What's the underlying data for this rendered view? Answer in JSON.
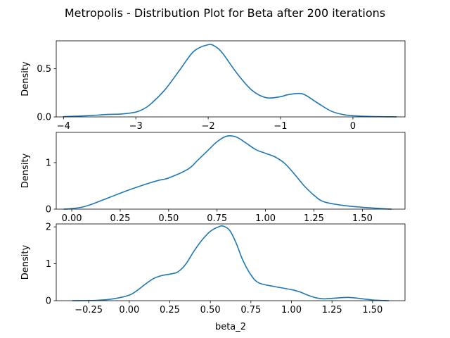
{
  "title": "Metropolis - Distribution Plot for Beta after 200 iterations",
  "chart_data": [
    {
      "type": "line",
      "xlabel": "",
      "ylabel": "Density",
      "xlim": [
        -4.1,
        0.72
      ],
      "ylim": [
        0,
        0.79
      ],
      "xticks": [
        -4,
        -3,
        -2,
        -1,
        0
      ],
      "xtick_labels": [
        "−4",
        "−3",
        "−2",
        "−1",
        "0"
      ],
      "yticks": [
        0,
        0.5
      ],
      "ytick_labels": [
        "0.0",
        "0.5"
      ],
      "color": "#1f77b4",
      "series": [
        {
          "x": [
            -4.0,
            -3.8,
            -3.6,
            -3.4,
            -3.2,
            -3.0,
            -2.9,
            -2.8,
            -2.6,
            -2.4,
            -2.2,
            -2.0,
            -1.9,
            -1.8,
            -1.6,
            -1.4,
            -1.2,
            -1.0,
            -0.9,
            -0.7,
            -0.5,
            -0.3,
            -0.1,
            0.2,
            0.6
          ],
          "y": [
            0.002,
            0.008,
            0.015,
            0.025,
            0.03,
            0.05,
            0.08,
            0.13,
            0.28,
            0.48,
            0.68,
            0.75,
            0.73,
            0.66,
            0.45,
            0.28,
            0.2,
            0.21,
            0.23,
            0.24,
            0.15,
            0.06,
            0.02,
            0.005,
            0.001
          ]
        }
      ]
    },
    {
      "type": "line",
      "xlabel": "",
      "ylabel": "Density",
      "xlim": [
        -0.08,
        1.72
      ],
      "ylim": [
        0,
        1.65
      ],
      "xticks": [
        0.0,
        0.25,
        0.5,
        0.75,
        1.0,
        1.25,
        1.5
      ],
      "xtick_labels": [
        "0.00",
        "0.25",
        "0.50",
        "0.75",
        "1.00",
        "1.25",
        "1.50"
      ],
      "yticks": [
        0,
        1
      ],
      "ytick_labels": [
        "0",
        "1"
      ],
      "color": "#1f77b4",
      "series": [
        {
          "x": [
            -0.04,
            0.0,
            0.05,
            0.1,
            0.15,
            0.2,
            0.3,
            0.4,
            0.45,
            0.5,
            0.6,
            0.65,
            0.7,
            0.75,
            0.8,
            0.85,
            0.9,
            0.95,
            1.0,
            1.05,
            1.1,
            1.15,
            1.2,
            1.25,
            1.3,
            1.4,
            1.5,
            1.6,
            1.65
          ],
          "y": [
            0.0,
            0.01,
            0.04,
            0.1,
            0.18,
            0.26,
            0.42,
            0.56,
            0.62,
            0.67,
            0.86,
            1.05,
            1.25,
            1.45,
            1.57,
            1.55,
            1.42,
            1.28,
            1.2,
            1.12,
            0.98,
            0.75,
            0.5,
            0.3,
            0.16,
            0.08,
            0.04,
            0.01,
            0.0
          ]
        }
      ]
    },
    {
      "type": "line",
      "xlabel": "beta_2",
      "ylabel": "Density",
      "xlim": [
        -0.45,
        1.7
      ],
      "ylim": [
        0,
        2.08
      ],
      "xticks": [
        -0.25,
        0.0,
        0.25,
        0.5,
        0.75,
        1.0,
        1.25,
        1.5
      ],
      "xtick_labels": [
        "−0.25",
        "0.00",
        "0.25",
        "0.50",
        "0.75",
        "1.00",
        "1.25",
        "1.50"
      ],
      "yticks": [
        0,
        1,
        2
      ],
      "ytick_labels": [
        "0",
        "1",
        "2"
      ],
      "color": "#1f77b4",
      "series": [
        {
          "x": [
            -0.35,
            -0.2,
            -0.1,
            0.0,
            0.05,
            0.1,
            0.15,
            0.2,
            0.25,
            0.3,
            0.35,
            0.4,
            0.45,
            0.5,
            0.55,
            0.58,
            0.62,
            0.66,
            0.7,
            0.75,
            0.8,
            0.9,
            1.0,
            1.05,
            1.1,
            1.15,
            1.2,
            1.3,
            1.35,
            1.4,
            1.5,
            1.6
          ],
          "y": [
            0.0,
            0.01,
            0.05,
            0.15,
            0.28,
            0.45,
            0.6,
            0.68,
            0.72,
            0.78,
            1.0,
            1.35,
            1.65,
            1.88,
            2.0,
            2.02,
            1.9,
            1.55,
            1.1,
            0.7,
            0.48,
            0.38,
            0.3,
            0.24,
            0.15,
            0.08,
            0.05,
            0.08,
            0.09,
            0.07,
            0.02,
            0.0
          ]
        }
      ]
    }
  ]
}
